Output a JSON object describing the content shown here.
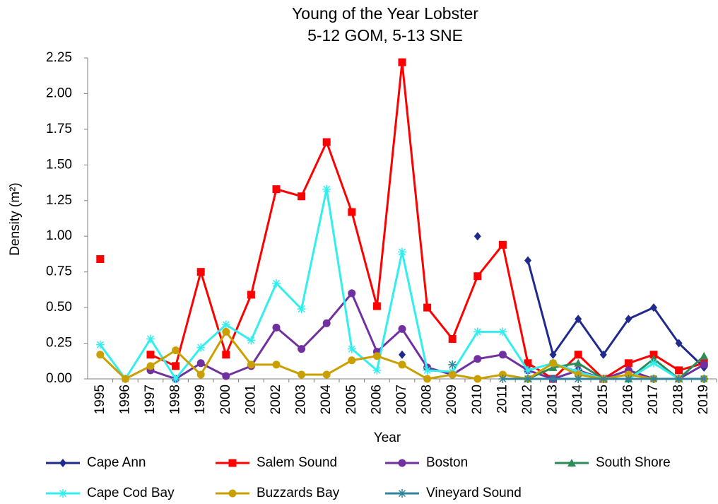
{
  "chart_data": {
    "type": "line",
    "title": [
      "Young of the Year Lobster",
      "5-12 GOM, 5-13 SNE"
    ],
    "x_label": "Year",
    "y_label": "Density (m²)",
    "categories": [
      "1995",
      "1996",
      "1997",
      "1998",
      "1999",
      "2000",
      "2001",
      "2002",
      "2003",
      "2004",
      "2005",
      "2006",
      "2007",
      "2008",
      "2009",
      "2010",
      "2011",
      "2012",
      "2013",
      "2014",
      "2015",
      "2016",
      "2017",
      "2018",
      "2019"
    ],
    "ylim": [
      0,
      2.25
    ],
    "yticks": [
      {
        "value": 0,
        "label": "0.00"
      },
      {
        "value": 0.25,
        "label": "0.25"
      },
      {
        "value": 0.5,
        "label": "0.50"
      },
      {
        "value": 0.75,
        "label": "0.75"
      },
      {
        "value": 1,
        "label": "1.00"
      },
      {
        "value": 1.25,
        "label": "1.25"
      },
      {
        "value": 1.5,
        "label": "1.50"
      },
      {
        "value": 1.75,
        "label": "1.75"
      },
      {
        "value": 2,
        "label": "2.00"
      },
      {
        "value": 2.25,
        "label": "2.25"
      }
    ],
    "grid": false,
    "series": [
      {
        "name": "Cape Ann",
        "color": "#1f2a8c",
        "marker": "diamond",
        "values": [
          null,
          null,
          null,
          null,
          null,
          null,
          null,
          null,
          null,
          null,
          null,
          null,
          0.17,
          null,
          null,
          1.0,
          null,
          0.83,
          0.17,
          0.42,
          0.17,
          0.42,
          0.5,
          0.25,
          0.08
        ]
      },
      {
        "name": "Salem Sound",
        "color": "#ff0000",
        "marker": "square",
        "values": [
          0.84,
          null,
          0.17,
          0.09,
          0.75,
          0.17,
          0.59,
          1.33,
          1.28,
          1.66,
          1.17,
          0.51,
          2.22,
          0.5,
          0.28,
          0.72,
          0.94,
          0.11,
          0.0,
          0.17,
          0.0,
          0.11,
          0.17,
          0.06,
          0.11
        ]
      },
      {
        "name": "Boston",
        "color": "#7030a0",
        "marker": "circle",
        "values": [
          null,
          null,
          0.06,
          0.0,
          0.11,
          0.02,
          0.09,
          0.36,
          0.21,
          0.39,
          0.6,
          0.19,
          0.35,
          0.08,
          0.03,
          0.14,
          0.17,
          0.06,
          0.0,
          0.06,
          0.0,
          0.06,
          0.0,
          0.0,
          0.1
        ]
      },
      {
        "name": "South Shore",
        "color": "#2e8b57",
        "marker": "triangle",
        "values": [
          null,
          null,
          null,
          null,
          null,
          null,
          null,
          null,
          null,
          null,
          null,
          null,
          null,
          null,
          null,
          null,
          null,
          0.0,
          0.08,
          0.11,
          0.0,
          0.0,
          0.14,
          0.0,
          0.16
        ]
      },
      {
        "name": "Cape Cod Bay",
        "color": "#33eeee",
        "marker": "star",
        "values": [
          0.24,
          0.0,
          0.28,
          0.0,
          0.22,
          0.38,
          0.27,
          0.67,
          0.49,
          1.33,
          0.21,
          0.06,
          0.89,
          0.06,
          0.05,
          0.33,
          0.33,
          0.06,
          0.11,
          0.05,
          0.0,
          0.0,
          0.11,
          0.0,
          0.0
        ]
      },
      {
        "name": "Buzzards Bay",
        "color": "#c9a000",
        "marker": "circle",
        "values": [
          0.17,
          0.0,
          0.09,
          0.2,
          0.03,
          0.33,
          0.1,
          0.1,
          0.03,
          0.03,
          0.13,
          0.16,
          0.1,
          0.0,
          0.03,
          0.0,
          0.03,
          0.0,
          0.11,
          0.03,
          0.0,
          0.03,
          0.0,
          0.0,
          0.0
        ]
      },
      {
        "name": "Vineyard Sound",
        "color": "#31849b",
        "marker": "star",
        "values": [
          null,
          null,
          null,
          null,
          null,
          null,
          null,
          null,
          null,
          null,
          null,
          null,
          null,
          null,
          0.1,
          null,
          0.0,
          0.0,
          0.0,
          0.0,
          0.0,
          0.0,
          0.0,
          0.0,
          0.0
        ]
      }
    ]
  }
}
